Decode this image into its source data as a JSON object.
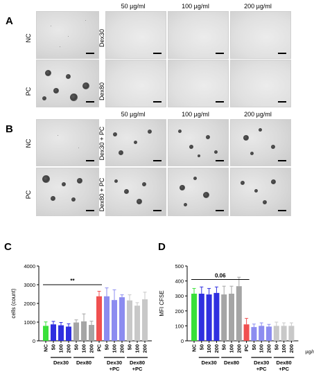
{
  "panel_a": {
    "letter": "A",
    "concentrations": [
      "50 µg/ml",
      "100 µg/ml",
      "200 µg/ml"
    ],
    "rows": [
      "NC",
      "PC"
    ],
    "treatments": [
      "Dex30",
      "Dex80"
    ]
  },
  "panel_b": {
    "letter": "B",
    "concentrations": [
      "50 µg/ml",
      "100 µg/ml",
      "200 µg/ml"
    ],
    "rows": [
      "NC",
      "PC"
    ],
    "treatments": [
      "Dex30 + PC",
      "Dex80 + PC"
    ]
  },
  "panel_c": {
    "letter": "C"
  },
  "panel_d": {
    "letter": "D"
  },
  "chart_data": [
    {
      "type": "bar",
      "ylabel": "cells (count)",
      "ylim": [
        0,
        4000
      ],
      "yticks": [
        0,
        1000,
        2000,
        3000,
        4000
      ],
      "categories": [
        "NC",
        "50",
        "100",
        "200",
        "50",
        "100",
        "200",
        "PC",
        "50",
        "100",
        "200",
        "50",
        "100",
        "200"
      ],
      "values": [
        800,
        880,
        830,
        760,
        980,
        1040,
        850,
        2380,
        2380,
        2180,
        2330,
        2160,
        1880,
        2220
      ],
      "errors": [
        210,
        160,
        150,
        150,
        140,
        400,
        200,
        270,
        450,
        550,
        130,
        300,
        160,
        380
      ],
      "colors": [
        "#39e039",
        "#2f2fe0",
        "#2f2fe0",
        "#2f2fe0",
        "#a5a5a5",
        "#a5a5a5",
        "#a5a5a5",
        "#f05050",
        "#8c8cf0",
        "#8c8cf0",
        "#8c8cf0",
        "#c8c8c8",
        "#c8c8c8",
        "#c8c8c8"
      ],
      "groups": [
        {
          "label": "Dex30",
          "from": 1,
          "to": 3
        },
        {
          "label": "Dex80",
          "from": 4,
          "to": 6
        },
        {
          "label": "Dex30\n+PC",
          "from": 8,
          "to": 10
        },
        {
          "label": "Dex80\n+PC",
          "from": 11,
          "to": 13
        }
      ],
      "significance": {
        "label": "**",
        "from": 0,
        "to": 7,
        "y": 3000
      },
      "unit": ""
    },
    {
      "type": "bar",
      "ylabel": "MFI CFSE",
      "ylim": [
        0,
        500
      ],
      "yticks": [
        0,
        100,
        200,
        300,
        400,
        500
      ],
      "categories": [
        "NC",
        "50",
        "100",
        "200",
        "50",
        "100",
        "200",
        "PC",
        "50",
        "100",
        "200",
        "50",
        "100",
        "200"
      ],
      "values": [
        315,
        315,
        310,
        320,
        310,
        315,
        365,
        110,
        92,
        100,
        95,
        100,
        100,
        100
      ],
      "errors": [
        35,
        45,
        40,
        40,
        55,
        50,
        60,
        40,
        20,
        20,
        15,
        25,
        20,
        20
      ],
      "colors": [
        "#39e039",
        "#2f2fe0",
        "#2f2fe0",
        "#2f2fe0",
        "#a5a5a5",
        "#a5a5a5",
        "#a5a5a5",
        "#f05050",
        "#8c8cf0",
        "#8c8cf0",
        "#8c8cf0",
        "#c8c8c8",
        "#c8c8c8",
        "#c8c8c8"
      ],
      "groups": [
        {
          "label": "Dex30",
          "from": 1,
          "to": 3
        },
        {
          "label": "Dex80",
          "from": 4,
          "to": 6
        },
        {
          "label": "Dex30\n+PC",
          "from": 8,
          "to": 10
        },
        {
          "label": "Dex80\n+PC",
          "from": 11,
          "to": 13
        }
      ],
      "significance": {
        "label": "0.06",
        "from": 0,
        "to": 7,
        "y": 410
      },
      "unit": "µg/ml"
    }
  ]
}
